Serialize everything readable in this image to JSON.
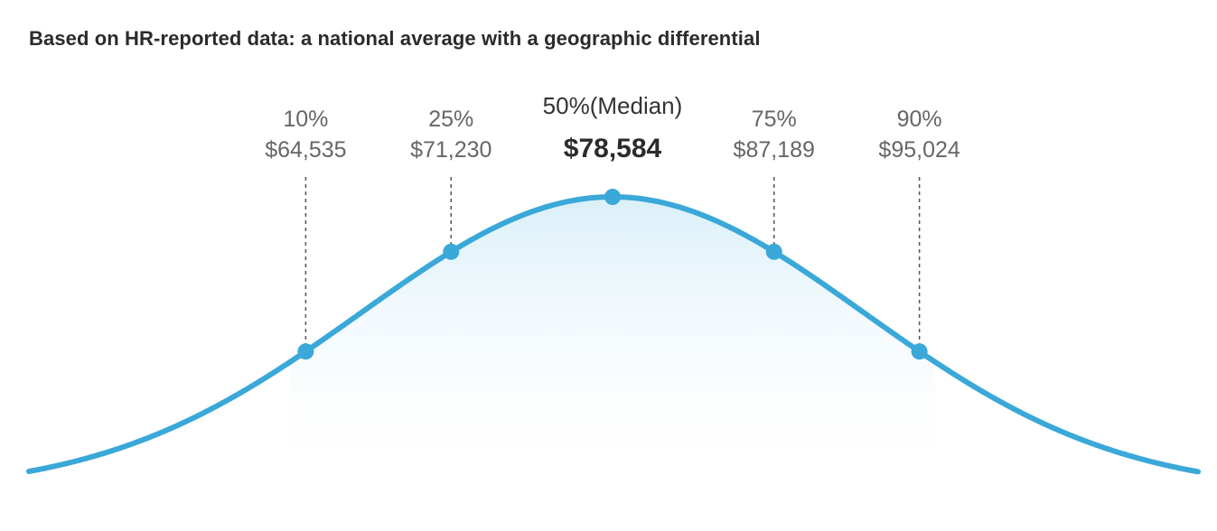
{
  "chart_data": {
    "type": "area",
    "title": "Based on HR-reported data: a national average with a geographic differential",
    "distribution": "normal",
    "x_unit": "USD",
    "points": [
      {
        "percentile": "10%",
        "value_label": "$64,535",
        "value": 64535,
        "highlight": false
      },
      {
        "percentile": "25%",
        "value_label": "$71,230",
        "value": 71230,
        "highlight": false
      },
      {
        "percentile": "50%(Median)",
        "value_label": "$78,584",
        "value": 78584,
        "highlight": true
      },
      {
        "percentile": "75%",
        "value_label": "$87,189",
        "value": 87189,
        "highlight": false
      },
      {
        "percentile": "90%",
        "value_label": "$95,024",
        "value": 95024,
        "highlight": false
      }
    ],
    "grid": false,
    "legend": "none"
  },
  "colors": {
    "curve": "#3aa8d8",
    "marker": "#3aa8d8",
    "fill_top": "#d7eef8",
    "dashed_line": "#555555",
    "title_text": "#2b2b2b",
    "label_text": "#666666"
  }
}
